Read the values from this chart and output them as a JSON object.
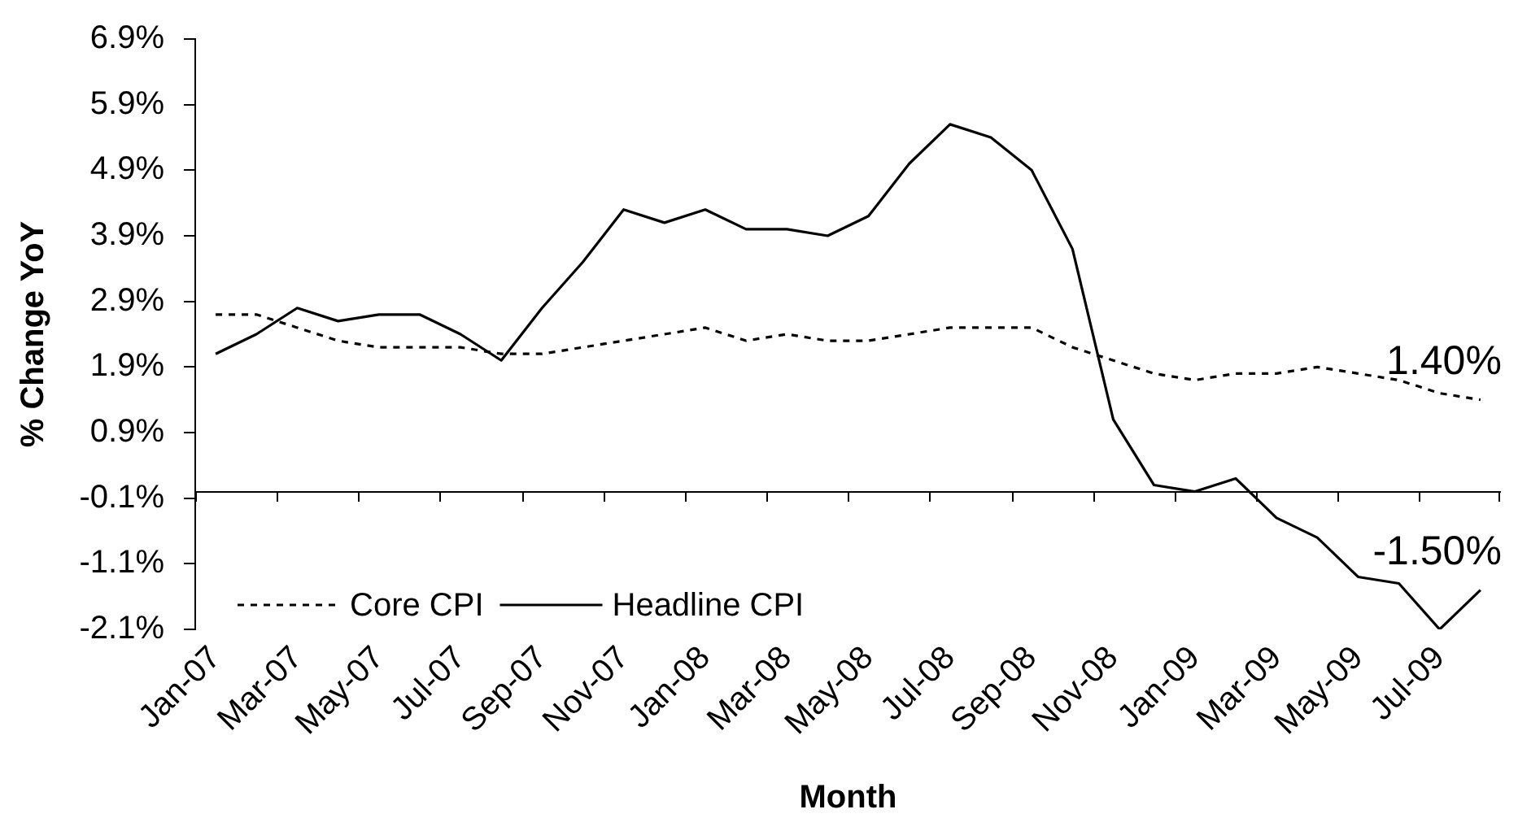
{
  "chart_data": {
    "type": "line",
    "categories": [
      "Jan-07",
      null,
      "Mar-07",
      null,
      "May-07",
      null,
      "Jul-07",
      null,
      "Sep-07",
      null,
      "Nov-07",
      null,
      "Jan-08",
      null,
      "Mar-08",
      null,
      "May-08",
      null,
      "Jul-08",
      null,
      "Sep-08",
      null,
      "Nov-08",
      null,
      "Jan-09",
      null,
      "Mar-09",
      null,
      "May-09",
      null,
      "Jul-09",
      null
    ],
    "series": [
      {
        "name": "Core CPI",
        "color": "#000000",
        "line_style": "dotted",
        "values": [
          2.7,
          2.7,
          2.5,
          2.3,
          2.2,
          2.2,
          2.2,
          2.1,
          2.1,
          2.2,
          2.3,
          2.4,
          2.5,
          2.3,
          2.4,
          2.3,
          2.3,
          2.4,
          2.5,
          2.5,
          2.5,
          2.2,
          2.0,
          1.8,
          1.7,
          1.8,
          1.8,
          1.9,
          1.8,
          1.7,
          1.5,
          1.4
        ],
        "value_labels": [
          null,
          null,
          null,
          null,
          null,
          null,
          null,
          null,
          null,
          null,
          null,
          null,
          null,
          null,
          null,
          null,
          null,
          null,
          null,
          null,
          null,
          null,
          null,
          null,
          null,
          null,
          null,
          null,
          null,
          null,
          null,
          "1.40%"
        ]
      },
      {
        "name": "Headline CPI",
        "color": "#000000",
        "line_style": "solid",
        "values": [
          2.1,
          2.4,
          2.8,
          2.6,
          2.7,
          2.7,
          2.4,
          2.0,
          2.8,
          3.5,
          4.3,
          4.1,
          4.3,
          4.0,
          4.0,
          3.9,
          4.2,
          5.0,
          5.6,
          5.4,
          4.9,
          3.7,
          1.1,
          0.1,
          0.0,
          0.2,
          -0.4,
          -0.7,
          -1.3,
          -1.4,
          -2.1,
          -1.5
        ],
        "value_labels": [
          null,
          null,
          null,
          null,
          null,
          null,
          null,
          null,
          null,
          null,
          null,
          null,
          null,
          null,
          null,
          null,
          null,
          null,
          null,
          null,
          null,
          null,
          null,
          null,
          null,
          null,
          null,
          null,
          null,
          null,
          null,
          "-1.50%"
        ]
      }
    ],
    "xlabel": "Month",
    "ylabel": "% Change YoY",
    "ylim": [
      -2.1,
      6.9
    ],
    "yticks": [
      {
        "value": -2.1,
        "label": "-2.1%"
      },
      {
        "value": -1.1,
        "label": "-1.1%"
      },
      {
        "value": -0.1,
        "label": "-0.1%"
      },
      {
        "value": 0.9,
        "label": "0.9%"
      },
      {
        "value": 1.9,
        "label": "1.9%"
      },
      {
        "value": 2.9,
        "label": "2.9%"
      },
      {
        "value": 3.9,
        "label": "3.9%"
      },
      {
        "value": 4.9,
        "label": "4.9%"
      },
      {
        "value": 5.9,
        "label": "5.9%"
      },
      {
        "value": 6.9,
        "label": "6.9%"
      }
    ],
    "legend": "bottom left"
  }
}
